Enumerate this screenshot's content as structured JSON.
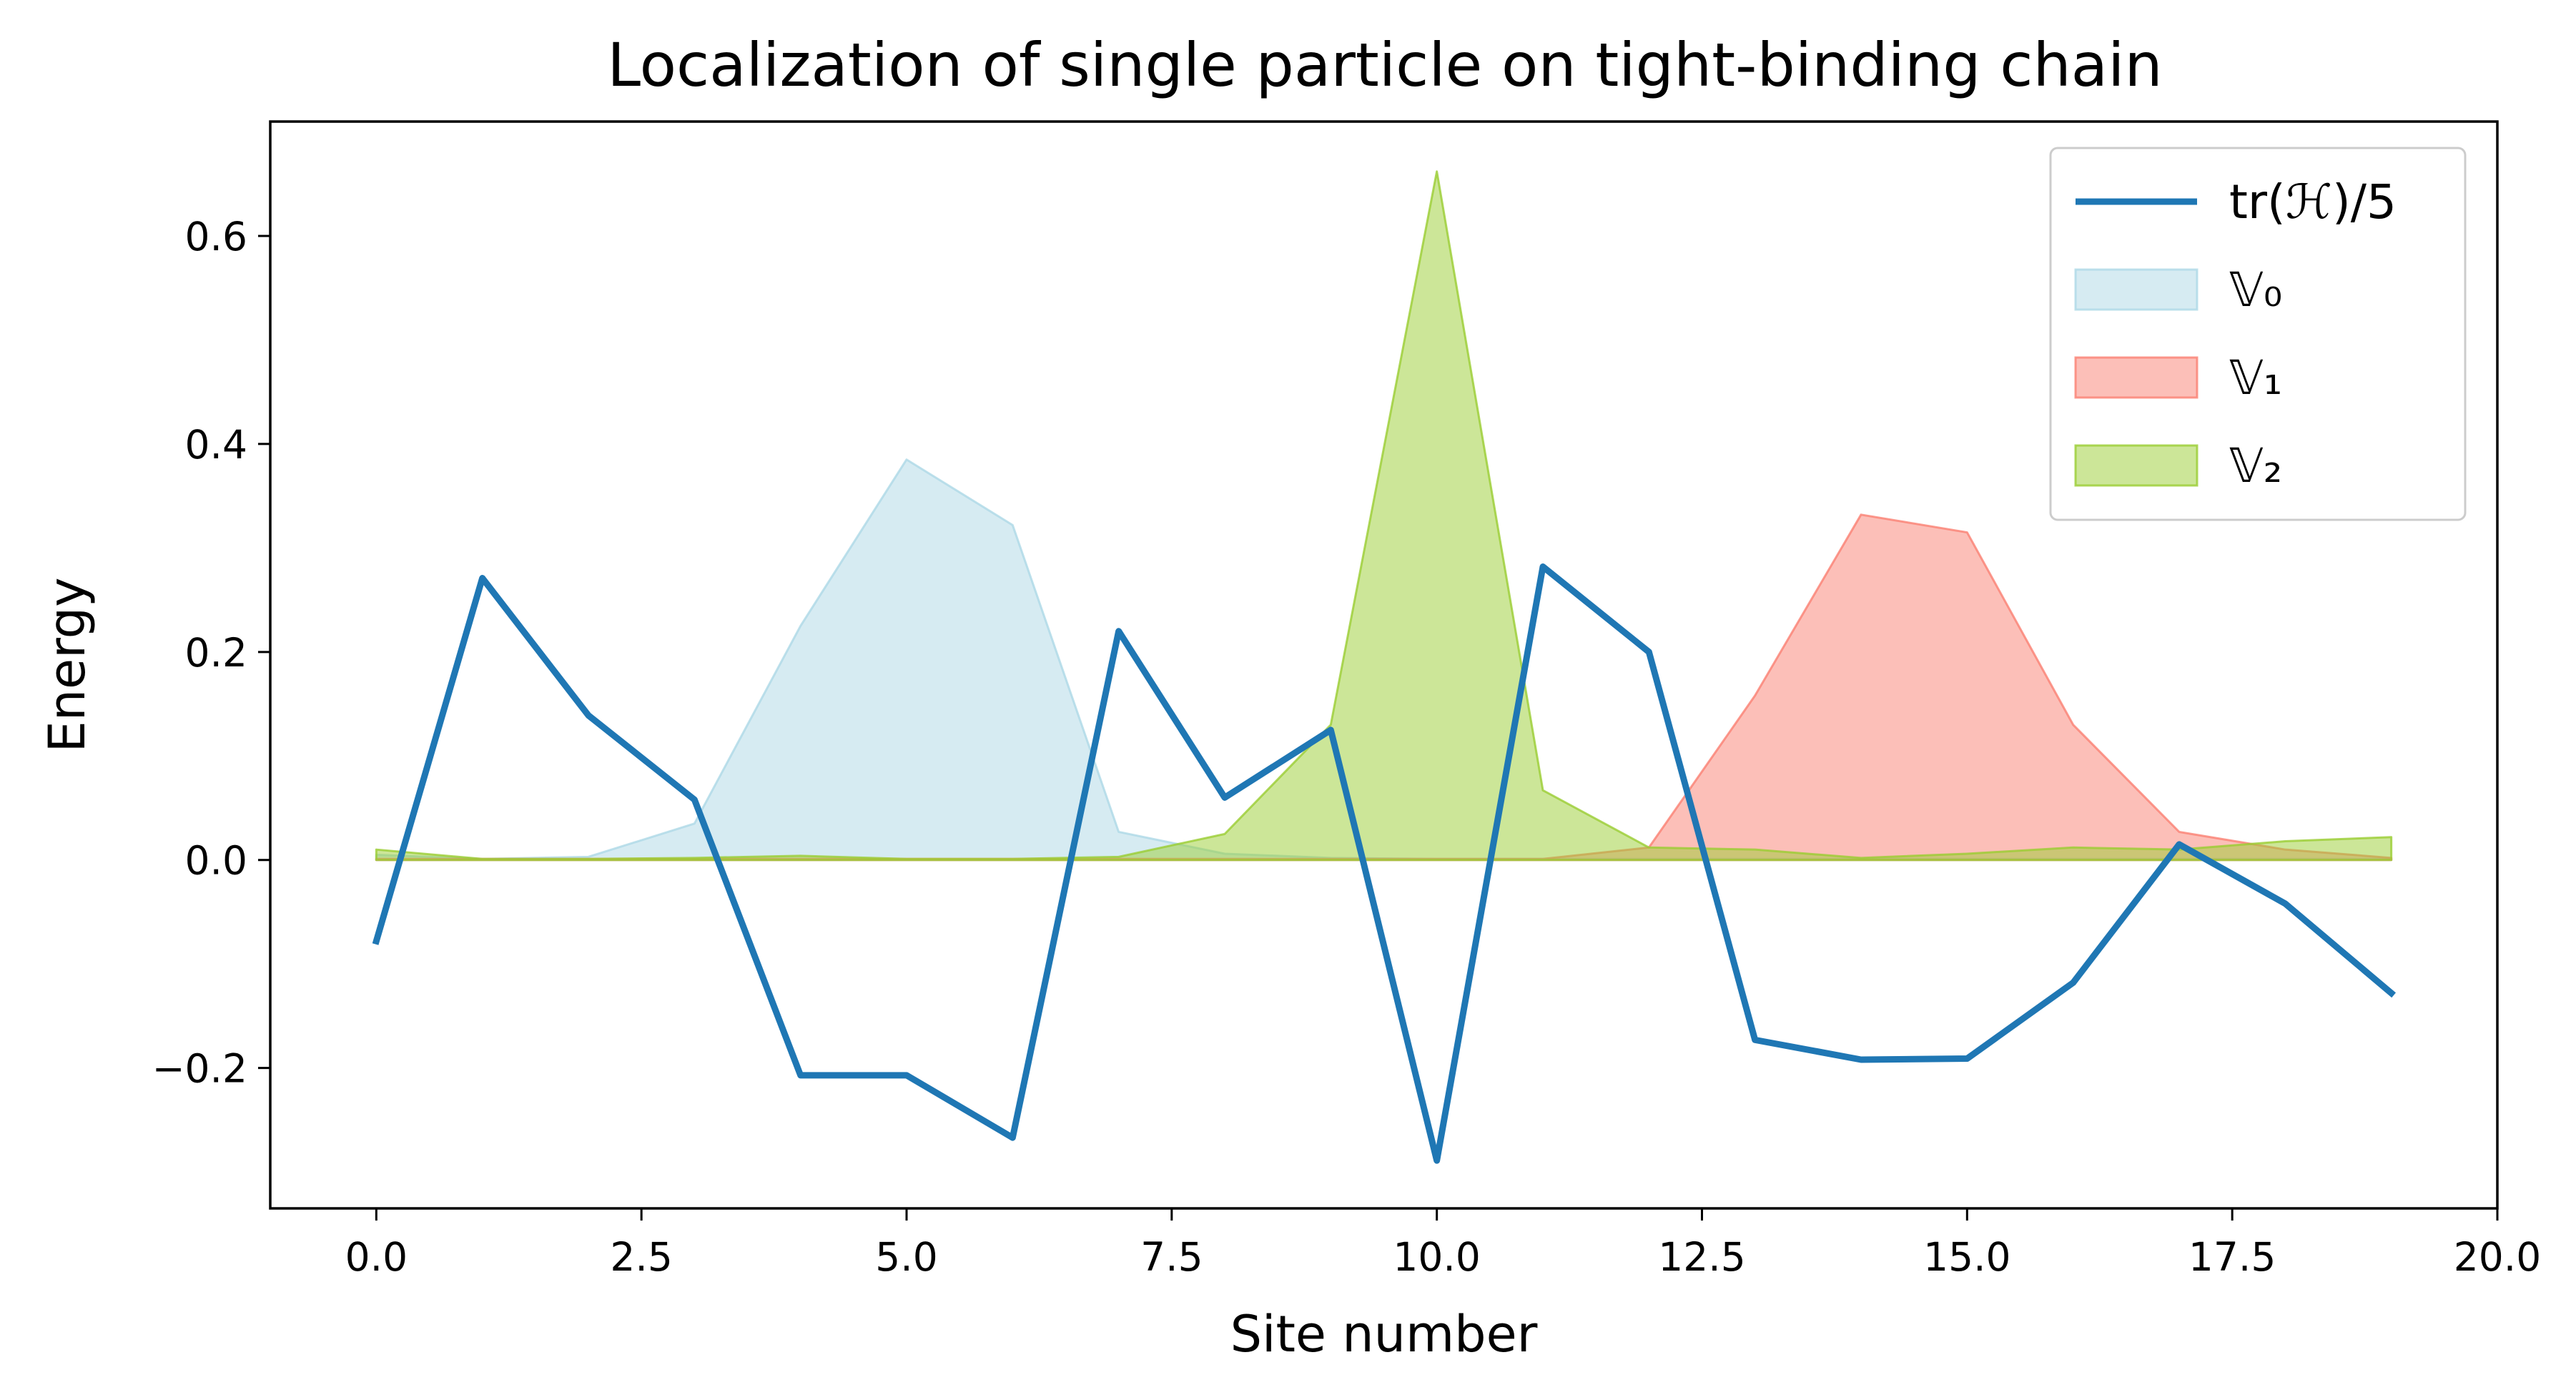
{
  "chart_data": {
    "type": "line",
    "title": "Localization of single particle on tight-binding chain",
    "xlabel": "Site number",
    "ylabel": "Energy",
    "xlim": [
      -1,
      20
    ],
    "ylim": [
      -0.335,
      0.71
    ],
    "xticks": [
      0,
      2.5,
      5,
      7.5,
      10,
      12.5,
      15,
      17.5,
      20
    ],
    "xtick_labels": [
      "0.0",
      "2.5",
      "5.0",
      "7.5",
      "10.0",
      "12.5",
      "15.0",
      "17.5",
      "20.0"
    ],
    "yticks": [
      -0.2,
      0,
      0.2,
      0.4,
      0.6
    ],
    "ytick_labels": [
      "−0.2",
      "0.0",
      "0.2",
      "0.4",
      "0.6"
    ],
    "grid": false,
    "legend_position": "top-right",
    "x": [
      0,
      1,
      2,
      3,
      4,
      5,
      6,
      7,
      8,
      9,
      10,
      11,
      12,
      13,
      14,
      15,
      16,
      17,
      18,
      19
    ],
    "series": [
      {
        "name": "tr(ℋ)/5",
        "kind": "line",
        "color": "#1f77b4",
        "values": [
          -0.078,
          0.271,
          0.139,
          0.058,
          -0.207,
          -0.207,
          -0.267,
          0.22,
          0.06,
          0.125,
          -0.289,
          0.282,
          0.2,
          -0.173,
          -0.192,
          -0.191,
          -0.118,
          0.015,
          -0.042,
          -0.128
        ]
      },
      {
        "name": "𝕍₀",
        "kind": "area",
        "color": "#add8e6",
        "values": [
          0.005,
          0.001,
          0.003,
          0.035,
          0.225,
          0.385,
          0.322,
          0.027,
          0.006,
          0.002,
          0.001,
          0.001,
          0.001,
          0.001,
          0.001,
          0.001,
          0.001,
          0.001,
          0.001,
          0.001
        ]
      },
      {
        "name": "𝕍₁",
        "kind": "area",
        "color": "#fa8072",
        "values": [
          0.001,
          0.001,
          0.001,
          0.001,
          0.001,
          0.001,
          0.001,
          0.001,
          0.001,
          0.001,
          0.001,
          0.001,
          0.012,
          0.158,
          0.332,
          0.315,
          0.13,
          0.027,
          0.01,
          0.002
        ]
      },
      {
        "name": "𝕍₂",
        "kind": "area",
        "color": "#9acd32",
        "values": [
          0.01,
          0.001,
          0.001,
          0.002,
          0.004,
          0.001,
          0.001,
          0.003,
          0.025,
          0.13,
          0.662,
          0.067,
          0.012,
          0.01,
          0.002,
          0.006,
          0.012,
          0.01,
          0.018,
          0.022
        ]
      }
    ]
  }
}
